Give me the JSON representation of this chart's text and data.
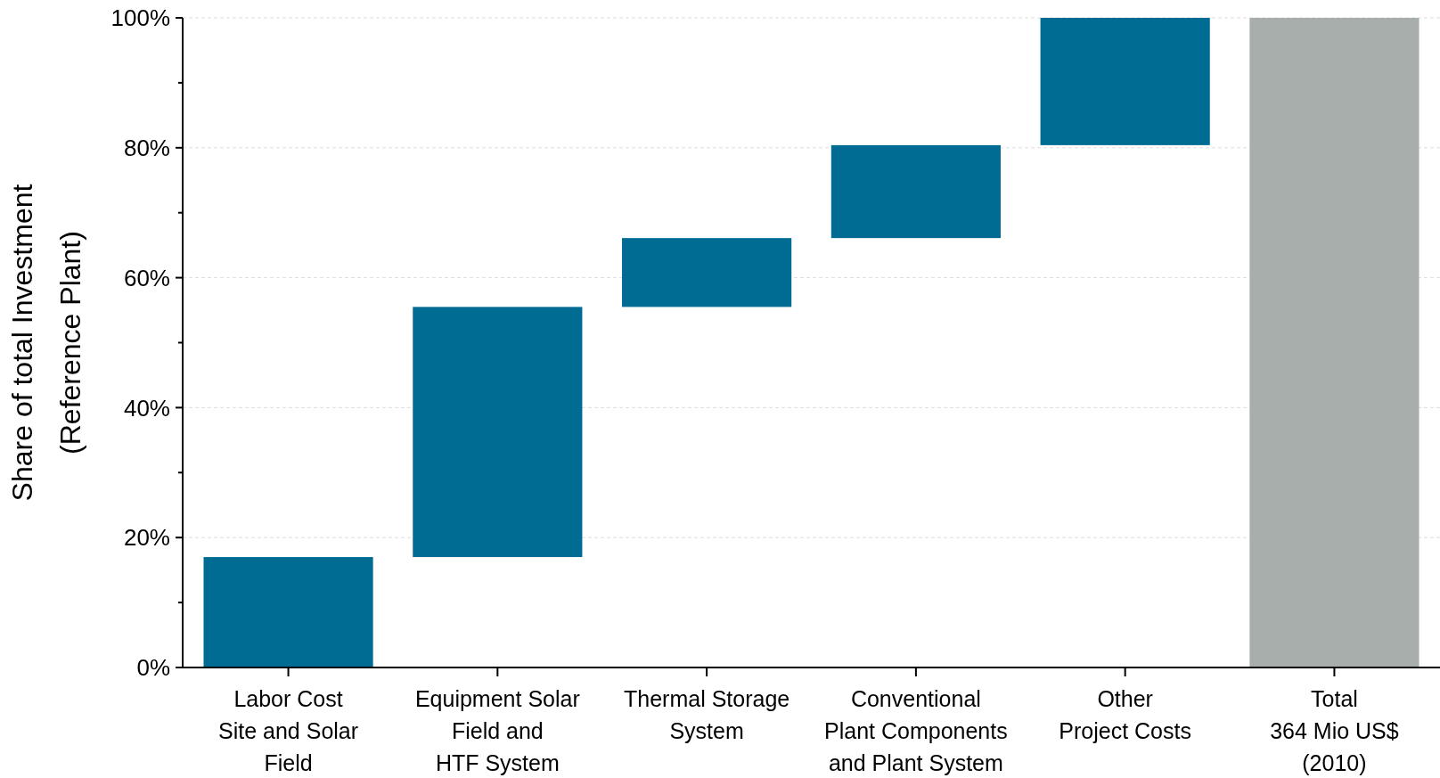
{
  "chart_data": {
    "type": "bar",
    "ylabel": "Share of total Investment\n(Reference Plant)",
    "categories": [
      "Labor Cost\nSite and Solar\nField",
      "Equipment Solar\nField and\nHTF System",
      "Thermal Storage\nSystem",
      "Conventional\nPlant Components\nand Plant System",
      "Other\nProject Costs",
      "Total\n364 Mio US$\n(2010)"
    ],
    "values": [
      17,
      38.5,
      10.6,
      14.3,
      19.6,
      100
    ],
    "base": [
      0,
      17,
      55.5,
      66.1,
      80.4,
      0
    ],
    "colors": [
      "#006c93",
      "#006c93",
      "#006c93",
      "#006c93",
      "#006c93",
      "#a8aeac"
    ],
    "ylim": [
      0,
      100
    ],
    "yticks": [
      {
        "value": 0,
        "label": "0%"
      },
      {
        "value": 10,
        "label": null
      },
      {
        "value": 20,
        "label": "20%"
      },
      {
        "value": 30,
        "label": null
      },
      {
        "value": 40,
        "label": "40%"
      },
      {
        "value": 50,
        "label": null
      },
      {
        "value": 60,
        "label": "60%"
      },
      {
        "value": 70,
        "label": null
      },
      {
        "value": 80,
        "label": "80%"
      },
      {
        "value": 90,
        "label": null
      },
      {
        "value": 100,
        "label": "100%"
      }
    ],
    "grid": "y"
  }
}
